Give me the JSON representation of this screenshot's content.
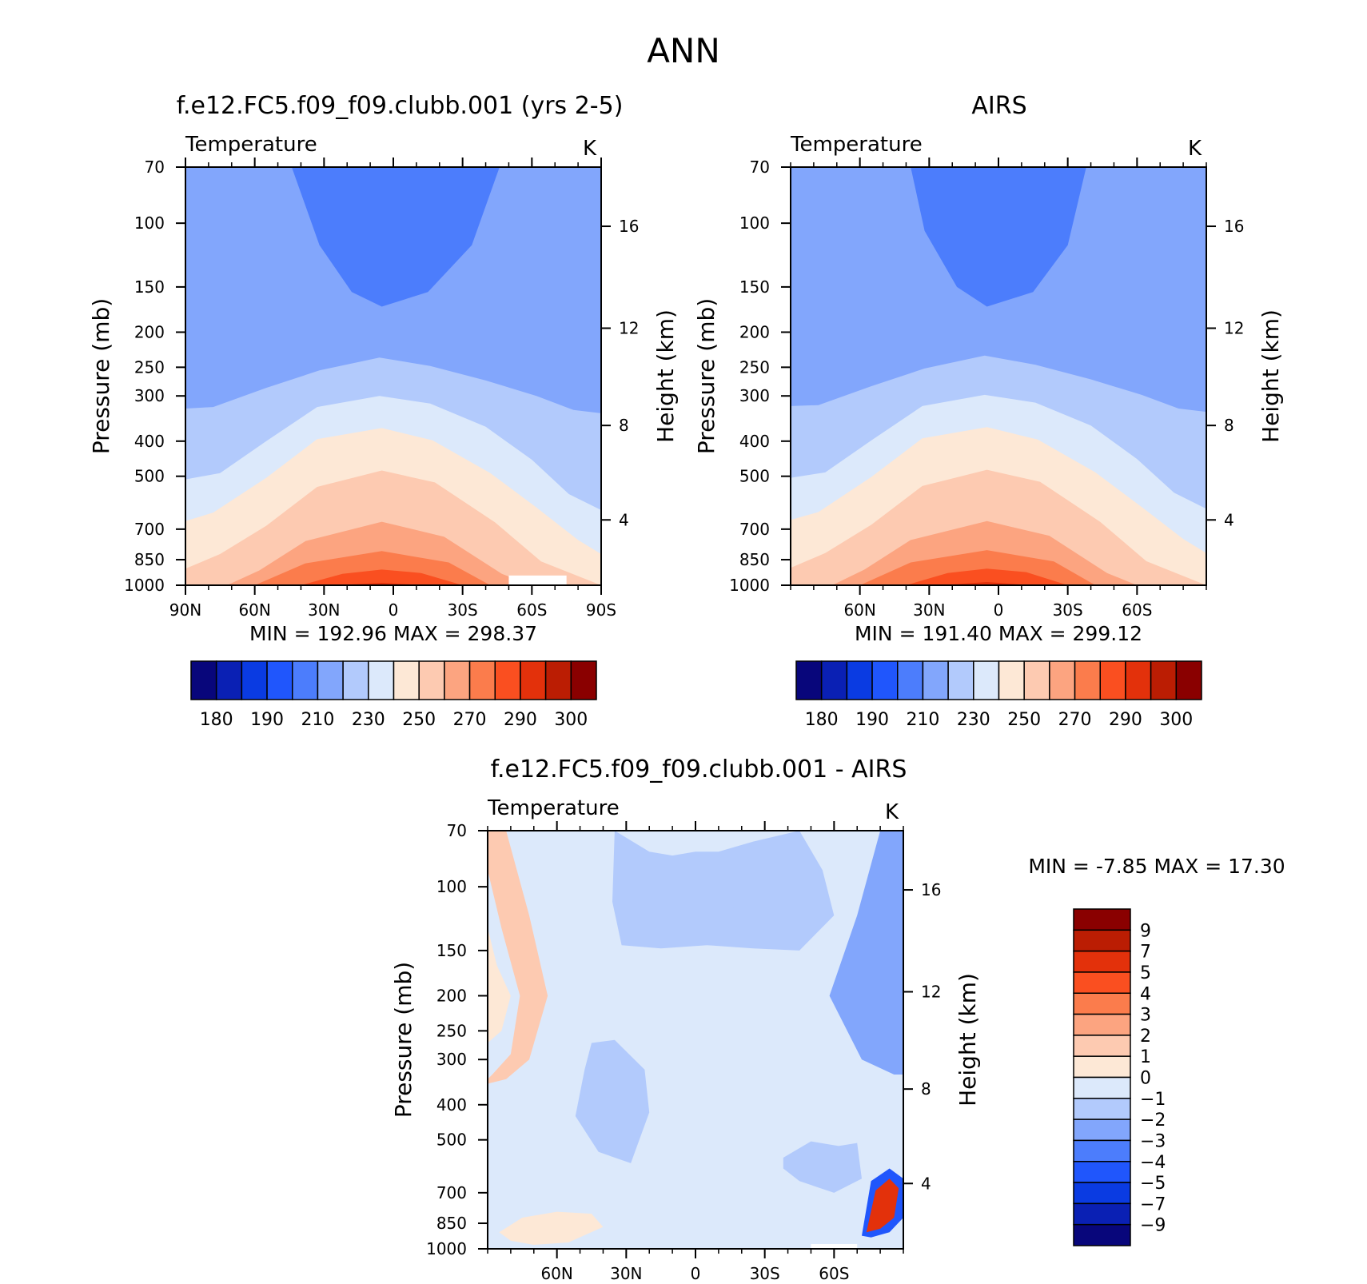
{
  "figure_title": "ANN",
  "chart_data": [
    {
      "type": "heatmap",
      "id": "model",
      "title": "f.e12.FC5.f09_f09.clubb.001 (yrs 2-5)",
      "subtitle_left": "Temperature",
      "unit": "K",
      "ylabel": "Pressure (mb)",
      "ylabel_right": "Height (km)",
      "min_max_text": "MIN =  192.96   MAX =  298.37",
      "xlim": [
        90,
        -90
      ],
      "ylim": [
        1000,
        70
      ],
      "log_y": true,
      "x_ticks": [
        "90N",
        "60N",
        "30N",
        "0",
        "30S",
        "60S",
        "90S"
      ],
      "x_tick_values": [
        90,
        60,
        30,
        0,
        -30,
        -60,
        -90
      ],
      "y_ticks": [
        70,
        100,
        150,
        200,
        250,
        300,
        400,
        500,
        700,
        850,
        1000
      ],
      "height_ticks": [
        "16",
        "12",
        "8",
        "4"
      ],
      "height_tick_pressures": [
        102,
        195,
        362,
        660
      ],
      "colorbar_levels": [
        175,
        180,
        185,
        190,
        200,
        210,
        220,
        230,
        240,
        250,
        260,
        270,
        280,
        290,
        295,
        300
      ],
      "colorbar_labels": [
        "180",
        "190",
        "210",
        "230",
        "250",
        "270",
        "290",
        "300"
      ],
      "colors": [
        "#08067b",
        "#0a20b4",
        "#0a3be2",
        "#2056fc",
        "#4c7dfc",
        "#82a6fc",
        "#b2cafc",
        "#dce9fb",
        "#fde8d6",
        "#fdcab1",
        "#fca480",
        "#fb7c4c",
        "#fa4f20",
        "#e3310b",
        "#bb1d03",
        "#8a0000"
      ],
      "contour_bands": [
        {
          "x": [
            44,
            32,
            18,
            5,
            -15,
            -34,
            -46
          ],
          "p": [
            70,
            115,
            155,
            170,
            155,
            115,
            70
          ]
        },
        {
          "x": [
            90,
            78,
            55,
            32,
            6,
            -16,
            -40,
            -62,
            -78,
            -90
          ],
          "p": [
            325,
            322,
            285,
            255,
            235,
            248,
            272,
            300,
            328,
            335
          ]
        },
        {
          "x": [
            90,
            75,
            55,
            33,
            6,
            -16,
            -40,
            -60,
            -76,
            -90
          ],
          "p": [
            510,
            490,
            400,
            322,
            300,
            315,
            365,
            450,
            560,
            620
          ]
        },
        {
          "x": [
            90,
            78,
            55,
            33,
            5,
            -17,
            -42,
            -62,
            -80,
            -90
          ],
          "p": [
            665,
            630,
            505,
            395,
            368,
            398,
            490,
            610,
            750,
            820
          ]
        },
        {
          "x": [
            90,
            75,
            55,
            33,
            5,
            -18,
            -44,
            -64,
            -90
          ],
          "p": [
            900,
            820,
            685,
            535,
            482,
            520,
            670,
            860,
            1000
          ]
        },
        {
          "x": [
            72,
            58,
            38,
            5,
            -22,
            -47,
            -60
          ],
          "p": [
            1000,
            910,
            755,
            668,
            735,
            930,
            1000
          ]
        },
        {
          "x": [
            60,
            38,
            5,
            -24,
            -42
          ],
          "p": [
            1000,
            870,
            805,
            865,
            1000
          ]
        },
        {
          "x": [
            40,
            22,
            5,
            -12,
            -30
          ],
          "p": [
            1000,
            930,
            905,
            925,
            1000
          ]
        },
        {
          "x": [
            25,
            5,
            -14
          ],
          "p": [
            1000,
            985,
            1000
          ]
        }
      ]
    },
    {
      "type": "heatmap",
      "id": "obs",
      "title": "AIRS",
      "subtitle_left": "Temperature",
      "unit": "K",
      "ylabel": "Pressure (mb)",
      "ylabel_right": "Height (km)",
      "min_max_text": "MIN =  191.40   MAX =  299.12",
      "xlim": [
        90,
        -90
      ],
      "ylim": [
        1000,
        70
      ],
      "log_y": true,
      "x_ticks": [
        "60N",
        "30N",
        "0",
        "30S",
        "60S"
      ],
      "x_tick_values": [
        60,
        30,
        0,
        -30,
        -60
      ],
      "y_ticks": [
        70,
        100,
        150,
        200,
        250,
        300,
        400,
        500,
        700,
        850,
        1000
      ],
      "height_ticks": [
        "16",
        "12",
        "8",
        "4"
      ],
      "height_tick_pressures": [
        102,
        195,
        362,
        660
      ],
      "colorbar_levels": [
        175,
        180,
        185,
        190,
        200,
        210,
        220,
        230,
        240,
        250,
        260,
        270,
        280,
        290,
        295,
        300
      ],
      "colorbar_labels": [
        "180",
        "190",
        "210",
        "230",
        "250",
        "270",
        "290",
        "300"
      ],
      "colors": [
        "#08067b",
        "#0a20b4",
        "#0a3be2",
        "#2056fc",
        "#4c7dfc",
        "#82a6fc",
        "#b2cafc",
        "#dce9fb",
        "#fde8d6",
        "#fdcab1",
        "#fca480",
        "#fb7c4c",
        "#fa4f20",
        "#e3310b",
        "#bb1d03",
        "#8a0000"
      ],
      "contour_bands": [
        {
          "x": [
            38,
            32,
            18,
            5,
            -15,
            -30,
            -38
          ],
          "p": [
            70,
            105,
            150,
            170,
            155,
            115,
            70
          ]
        },
        {
          "x": [
            90,
            78,
            55,
            32,
            6,
            -16,
            -40,
            -62,
            -78,
            -90
          ],
          "p": [
            320,
            318,
            282,
            252,
            232,
            246,
            270,
            298,
            325,
            332
          ]
        },
        {
          "x": [
            90,
            75,
            55,
            33,
            6,
            -16,
            -40,
            -60,
            -76,
            -90
          ],
          "p": [
            505,
            488,
            398,
            320,
            298,
            313,
            362,
            448,
            555,
            615
          ]
        },
        {
          "x": [
            90,
            78,
            55,
            33,
            5,
            -17,
            -42,
            -62,
            -80,
            -90
          ],
          "p": [
            660,
            628,
            502,
            393,
            366,
            396,
            488,
            608,
            745,
            815
          ]
        },
        {
          "x": [
            90,
            75,
            55,
            33,
            5,
            -18,
            -44,
            -64,
            -90
          ],
          "p": [
            895,
            815,
            680,
            532,
            480,
            518,
            668,
            858,
            1000
          ]
        },
        {
          "x": [
            72,
            58,
            38,
            5,
            -22,
            -47,
            -60
          ],
          "p": [
            1000,
            905,
            750,
            665,
            730,
            925,
            1000
          ]
        },
        {
          "x": [
            60,
            38,
            5,
            -24,
            -42
          ],
          "p": [
            1000,
            865,
            800,
            860,
            1000
          ]
        },
        {
          "x": [
            40,
            22,
            5,
            -12,
            -30
          ],
          "p": [
            1000,
            925,
            900,
            920,
            1000
          ]
        },
        {
          "x": [
            25,
            5,
            -14
          ],
          "p": [
            1000,
            980,
            1000
          ]
        }
      ]
    },
    {
      "type": "heatmap",
      "id": "diff",
      "title": "f.e12.FC5.f09_f09.clubb.001 - AIRS",
      "subtitle_left": "Temperature",
      "unit": "K",
      "ylabel": "Pressure (mb)",
      "ylabel_right": "Height (km)",
      "min_max_text": "MIN =   -7.85   MAX =   17.30",
      "xlim": [
        90,
        -90
      ],
      "ylim": [
        1000,
        70
      ],
      "log_y": true,
      "x_ticks": [
        "60N",
        "30N",
        "0",
        "30S",
        "60S"
      ],
      "x_tick_values": [
        60,
        30,
        0,
        -30,
        -60
      ],
      "y_ticks": [
        70,
        100,
        150,
        200,
        250,
        300,
        400,
        500,
        700,
        850,
        1000
      ],
      "height_ticks": [
        "16",
        "12",
        "8",
        "4"
      ],
      "height_tick_pressures": [
        102,
        195,
        362,
        660
      ],
      "colorbar_levels": [
        -11,
        -9,
        -7,
        -5,
        -4,
        -3,
        -2,
        -1,
        0,
        1,
        2,
        3,
        4,
        5,
        7,
        9,
        11
      ],
      "colorbar_labels": [
        "9",
        "7",
        "5",
        "4",
        "3",
        "2",
        "1",
        "0",
        "−1",
        "−2",
        "−3",
        "−4",
        "−5",
        "−7",
        "−9"
      ],
      "colors": [
        "#8a0000",
        "#bb1d03",
        "#e3310b",
        "#fa4f20",
        "#fb7c4c",
        "#fca480",
        "#fdcab1",
        "#fde8d6",
        "#dce9fb",
        "#b2cafc",
        "#82a6fc",
        "#4c7dfc",
        "#2056fc",
        "#0a3be2",
        "#0a20b4",
        "#08067b"
      ],
      "contour_bands": [
        {
          "x": [
            35,
            20,
            10,
            0,
            -10,
            -25,
            -45,
            -55,
            -60,
            -45,
            -25,
            -5,
            15,
            32,
            36
          ],
          "p": [
            70,
            80,
            82,
            80,
            80,
            75,
            70,
            90,
            120,
            150,
            148,
            145,
            148,
            145,
            110
          ]
        },
        {
          "x": [
            30,
            15,
            0,
            -15,
            -30
          ],
          "p": [
            102,
            112,
            118,
            115,
            108
          ]
        },
        {
          "x": [
            45,
            35,
            22,
            20,
            28,
            42,
            52,
            48
          ],
          "p": [
            270,
            265,
            320,
            420,
            580,
            540,
            430,
            320
          ]
        },
        {
          "x": [
            75,
            60,
            45,
            40,
            55,
            70,
            80,
            85
          ],
          "p": [
            820,
            790,
            800,
            870,
            960,
            975,
            950,
            900
          ]
        },
        {
          "x": [
            90,
            82,
            72,
            64,
            72,
            82,
            90
          ],
          "p": [
            70,
            70,
            120,
            200,
            300,
            340,
            350
          ]
        },
        {
          "x": [
            90,
            84,
            76,
            80,
            88,
            90
          ],
          "p": [
            90,
            130,
            200,
            290,
            330,
            340
          ]
        },
        {
          "x": [
            90,
            86,
            80,
            84,
            90
          ],
          "p": [
            130,
            165,
            200,
            250,
            270
          ]
        },
        {
          "x": [
            -90,
            -80,
            -70,
            -58,
            -72,
            -86,
            -90
          ],
          "p": [
            70,
            70,
            120,
            200,
            300,
            330,
            330
          ]
        },
        {
          "x": [
            -90,
            -84,
            -76,
            -70,
            -78,
            -90
          ],
          "p": [
            70,
            115,
            175,
            205,
            240,
            260
          ]
        },
        {
          "x": [
            -38,
            -50,
            -62,
            -70,
            -72,
            -60,
            -45,
            -38
          ],
          "p": [
            560,
            505,
            520,
            510,
            640,
            700,
            650,
            600
          ]
        },
        {
          "x": [
            -72,
            -76,
            -84,
            -90,
            -90,
            -84,
            -76,
            -72
          ],
          "p": [
            920,
            650,
            600,
            640,
            820,
            900,
            930,
            920
          ]
        },
        {
          "x": [
            -74,
            -78,
            -84,
            -88,
            -86,
            -80,
            -74
          ],
          "p": [
            900,
            690,
            640,
            680,
            820,
            880,
            900
          ]
        }
      ],
      "diff_colorbar_orientation": "vertical"
    }
  ]
}
